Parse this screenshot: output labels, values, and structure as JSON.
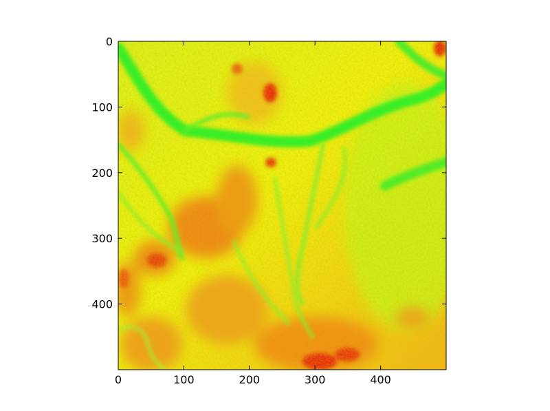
{
  "chart_data": {
    "type": "heatmap",
    "title": "",
    "xlabel": "",
    "ylabel": "",
    "xlim": [
      0,
      500
    ],
    "ylim": [
      500,
      0
    ],
    "x_ticks": [
      0,
      100,
      200,
      300,
      400
    ],
    "y_ticks": [
      0,
      100,
      200,
      300,
      400
    ],
    "x_tick_labels": [
      "0",
      "100",
      "200",
      "300",
      "400"
    ],
    "y_tick_labels": [
      "0",
      "100",
      "200",
      "300",
      "400"
    ],
    "grid": false,
    "legend": "none",
    "colormap": [
      "#00ff00",
      "#ffff00",
      "#ff0000"
    ],
    "image_size": [
      500,
      500
    ]
  }
}
